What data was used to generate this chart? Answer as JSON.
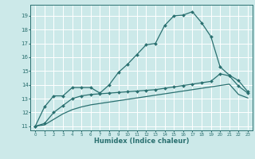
{
  "xlabel": "Humidex (Indice chaleur)",
  "background_color": "#cce9e9",
  "grid_color": "#ffffff",
  "line_color": "#2a7070",
  "xlim": [
    -0.5,
    23.5
  ],
  "ylim": [
    10.7,
    19.8
  ],
  "yticks": [
    11,
    12,
    13,
    14,
    15,
    16,
    17,
    18,
    19
  ],
  "xticks": [
    0,
    1,
    2,
    3,
    4,
    5,
    6,
    7,
    8,
    9,
    10,
    11,
    12,
    13,
    14,
    15,
    16,
    17,
    18,
    19,
    20,
    21,
    22,
    23
  ],
  "series1_x": [
    0,
    1,
    2,
    3,
    4,
    5,
    6,
    7,
    8,
    9,
    10,
    11,
    12,
    13,
    14,
    15,
    16,
    17,
    18,
    19,
    20,
    21,
    22,
    23
  ],
  "series1_y": [
    11.0,
    12.4,
    13.2,
    13.2,
    13.8,
    13.8,
    13.8,
    13.4,
    14.0,
    14.9,
    15.5,
    16.2,
    16.9,
    17.0,
    18.3,
    19.0,
    19.05,
    19.3,
    18.5,
    17.5,
    15.3,
    14.7,
    14.3,
    13.5
  ],
  "series2_x": [
    0,
    1,
    2,
    3,
    4,
    5,
    6,
    7,
    8,
    9,
    10,
    11,
    12,
    13,
    14,
    15,
    16,
    17,
    18,
    19,
    20,
    21,
    22,
    23
  ],
  "series2_y": [
    11.0,
    11.2,
    12.0,
    12.5,
    13.0,
    13.2,
    13.3,
    13.35,
    13.4,
    13.45,
    13.5,
    13.55,
    13.6,
    13.65,
    13.75,
    13.85,
    13.95,
    14.05,
    14.15,
    14.25,
    14.8,
    14.65,
    13.9,
    13.4
  ],
  "series3_x": [
    0,
    1,
    2,
    3,
    4,
    5,
    6,
    7,
    8,
    9,
    10,
    11,
    12,
    13,
    14,
    15,
    16,
    17,
    18,
    19,
    20,
    21,
    22,
    23
  ],
  "series3_y": [
    11.0,
    11.1,
    11.5,
    11.9,
    12.2,
    12.4,
    12.55,
    12.65,
    12.75,
    12.85,
    12.95,
    13.05,
    13.15,
    13.25,
    13.35,
    13.45,
    13.55,
    13.65,
    13.75,
    13.85,
    13.95,
    14.05,
    13.3,
    13.05
  ]
}
